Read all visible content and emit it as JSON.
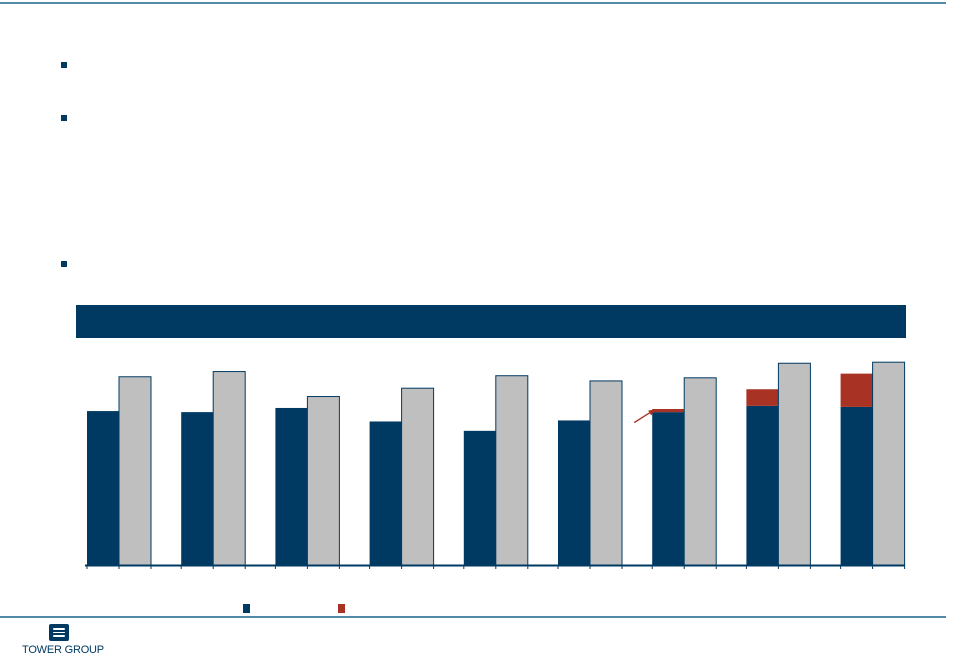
{
  "brand": {
    "logo_text": "TOWER GROUP",
    "logo_icon": "wave-lines-icon"
  },
  "colors": {
    "navy": "#003a63",
    "gray": "#bfbfbf",
    "red": "#a83224",
    "rule": "#4f8aa8"
  },
  "chart_data": {
    "type": "bar",
    "stacked_first_series": true,
    "categories": [
      "",
      "",
      "",
      "",
      "",
      "",
      "",
      "",
      ""
    ],
    "series": [
      {
        "values": [
          148,
          147,
          151,
          138,
          129,
          139,
          147,
          153,
          152
        ]
      },
      {
        "values": [
          0,
          0,
          0,
          0,
          0,
          0,
          3,
          16,
          32
        ]
      },
      {
        "values": [
          181,
          186,
          162,
          170,
          182,
          177,
          180,
          194,
          195
        ]
      }
    ],
    "ylim": [
      0,
      200
    ],
    "grid": false,
    "annotation": {
      "type": "arrow",
      "target_category_index": 6
    },
    "legend": {
      "position": "bottom",
      "entries": [
        "",
        ""
      ]
    }
  }
}
